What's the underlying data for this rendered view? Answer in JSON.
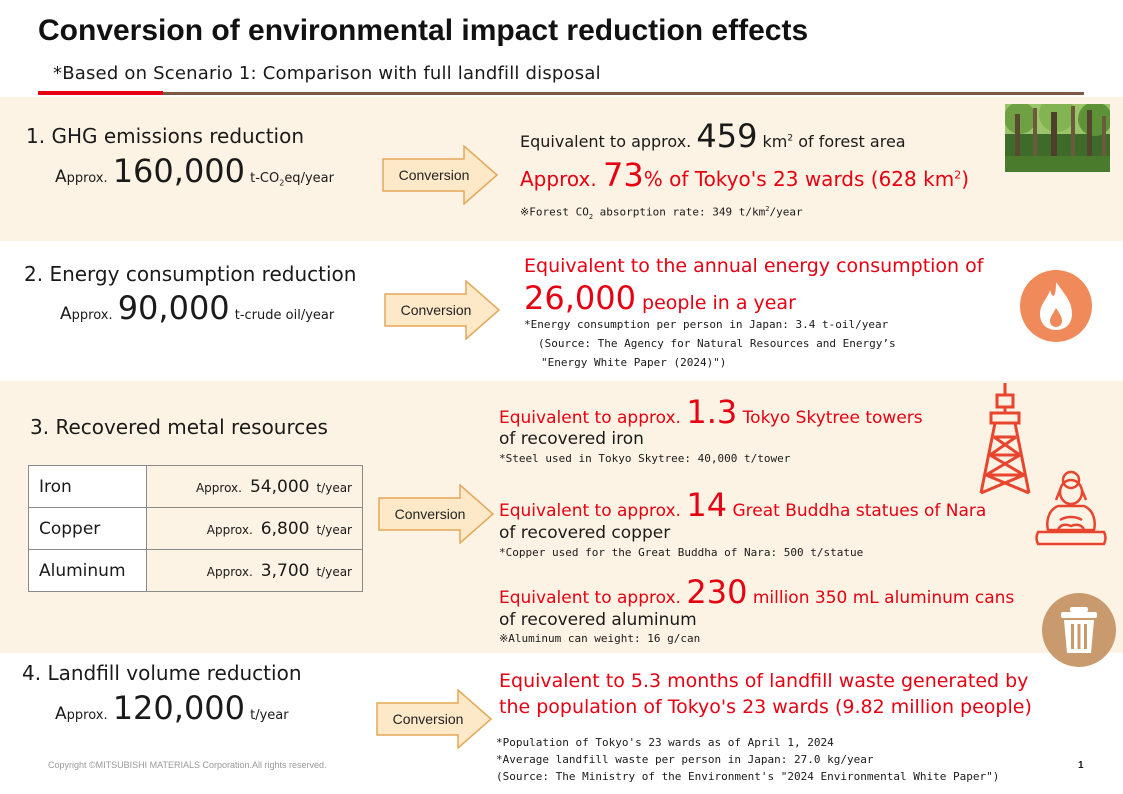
{
  "header": {
    "title": "Conversion of environmental impact reduction effects",
    "subtitle": "*Based on Scenario 1: Comparison with full landfill disposal"
  },
  "conversion_label": "Conversion",
  "sections": {
    "ghg": {
      "title": "1.  GHG emissions reduction",
      "approx_a": "A",
      "approx_rest": "pprox.",
      "value": "160,000",
      "unit_pre": "t-CO",
      "unit_sub": "2",
      "unit_post": "eq/year",
      "line1_pre": "Equivalent to approx.",
      "line1_num": "459",
      "line1_unit": "km",
      "line1_sup": "2",
      "line1_post": "of forest area",
      "line2_pre": "Approx.",
      "line2_num": "73",
      "line2_post": "% of Tokyo's 23 wards (628 km",
      "line2_sup": "2",
      "line2_end": ")",
      "note_pre": "※Forest CO",
      "note_sub": "2",
      "note_mid": " absorption rate: 349 t/km",
      "note_sup": "2",
      "note_post": "/year",
      "image": "forest-photo"
    },
    "energy": {
      "title": "2.  Energy consumption reduction",
      "approx_a": "A",
      "approx_rest": "pprox.",
      "value": "90,000",
      "unit": "t-crude oil/year",
      "line1": "Equivalent to the annual energy consumption of",
      "line2_num": "26,000",
      "line2_post": "people in a year",
      "note1": "*Energy consumption per person in Japan: 3.4 t-oil/year",
      "note2": "(Source: The Agency for Natural Resources and Energy’s",
      "note3": "\"Energy White Paper (2024)\")",
      "icon": "flame-icon"
    },
    "metals": {
      "title": "3. Recovered metal resources",
      "rows": [
        {
          "name": "Iron",
          "approx": "Approx.",
          "value": "54,000",
          "unit": "t/year"
        },
        {
          "name": "Copper",
          "approx": "Approx.",
          "value": "6,800",
          "unit": "t/year"
        },
        {
          "name": "Aluminum",
          "approx": "Approx.",
          "value": "3,700",
          "unit": "t/year"
        }
      ],
      "iron": {
        "pre": "Equivalent to approx.",
        "num": "1.3",
        "post": "Tokyo Skytree towers",
        "line2": "of recovered iron",
        "note": "*Steel used in Tokyo Skytree: 40,000 t/tower",
        "icon": "skytree-icon"
      },
      "copper": {
        "pre": "Equivalent to approx.",
        "num": "14",
        "post": "Great Buddha statues of Nara",
        "line2": "of recovered copper",
        "note": "*Copper used for the Great Buddha of Nara: 500 t/statue",
        "icon": "buddha-icon"
      },
      "aluminum": {
        "pre": "Equivalent to approx.",
        "num": "230",
        "post": "million 350 mL aluminum cans",
        "line2": "of recovered aluminum",
        "note": "※Aluminum can weight: 16 g/can",
        "icon": "trash-can-icon"
      }
    },
    "landfill": {
      "title": "4. Landfill volume reduction",
      "approx_a": "A",
      "approx_rest": "pprox.",
      "value": "120,000",
      "unit": "t/year",
      "line1": "Equivalent to 5.3 months of landfill waste generated by",
      "line2": "the population of Tokyo's 23 wards (9.82 million people)",
      "note1": "*Population of Tokyo's 23 wards as of April 1, 2024",
      "note2": "*Average landfill waste per person in Japan: 27.0 kg/year",
      "note3": "(Source: The Ministry of the Environment's \"2024 Environmental White Paper\")"
    }
  },
  "footer": {
    "copyright": "Copyright ©MITSUBISHI MATERIALS Corporation.All rights reserved.",
    "page": "1"
  },
  "colors": {
    "accent_red": "#e60012",
    "band": "#fdf3e4",
    "arrow_fill": "#fde9c8",
    "arrow_stroke": "#e3a85a",
    "icon_orange": "#f08a5a",
    "icon_brown": "#c99a6e"
  }
}
